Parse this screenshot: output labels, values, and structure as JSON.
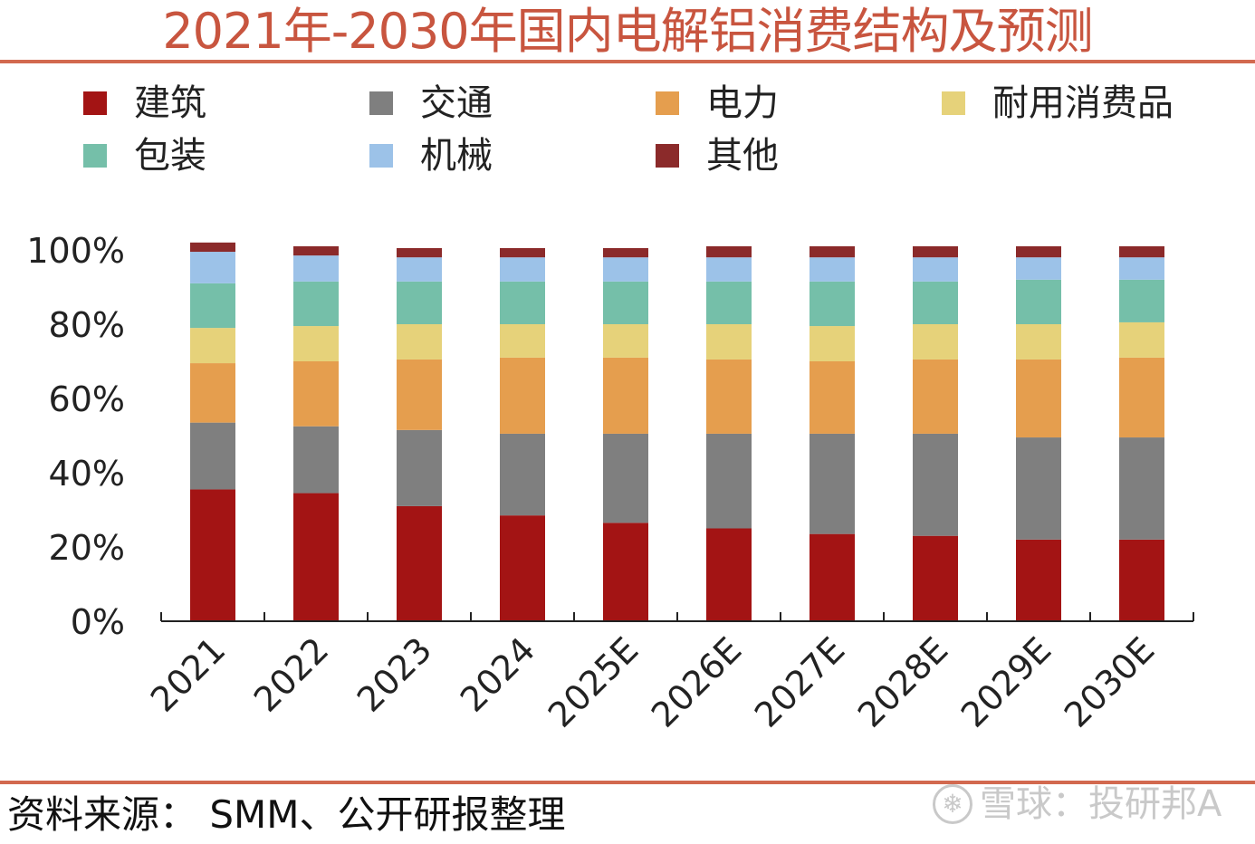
{
  "source_text": "资料来源： SMM、公开研报整理",
  "watermark": {
    "text": "雪球：投研邦A",
    "icon": "snowball-logo-icon"
  },
  "chart_data": {
    "type": "bar",
    "stacked": true,
    "title": "2021年-2030年国内电解铝消费结构及预测",
    "categories": [
      "2021",
      "2022",
      "2023",
      "2024",
      "2025E",
      "2026E",
      "2027E",
      "2028E",
      "2029E",
      "2030E"
    ],
    "series": [
      {
        "name": "建筑",
        "color": "#a31414",
        "values": [
          35.5,
          34.5,
          31,
          28.5,
          26.5,
          25,
          23.5,
          23,
          22,
          22
        ]
      },
      {
        "name": "交通",
        "color": "#7f7f7f",
        "values": [
          18,
          18,
          20.5,
          22,
          24,
          25.5,
          27,
          27.5,
          27.5,
          27.5
        ]
      },
      {
        "name": "电力",
        "color": "#e59e4e",
        "values": [
          16,
          17.5,
          19,
          20.5,
          20.5,
          20,
          19.5,
          20,
          21,
          21.5
        ]
      },
      {
        "name": "耐用消费品",
        "color": "#e6d27a",
        "values": [
          9.5,
          9.5,
          9.5,
          9,
          9,
          9.5,
          9.5,
          9.5,
          9.5,
          9.5
        ]
      },
      {
        "name": "包装",
        "color": "#75bfa9",
        "values": [
          12,
          12,
          11.5,
          11.5,
          11.5,
          11.5,
          12,
          11.5,
          12,
          11.5
        ]
      },
      {
        "name": "机械",
        "color": "#9cc2e8",
        "values": [
          8.5,
          7,
          6.5,
          6.5,
          6.5,
          6.5,
          6.5,
          6.5,
          6,
          6
        ]
      },
      {
        "name": "其他",
        "color": "#8b2a2a",
        "values": [
          2.5,
          2.5,
          2.5,
          2.5,
          2.5,
          3,
          3,
          3,
          3,
          3
        ]
      }
    ],
    "y_ticks": [
      "0%",
      "20%",
      "40%",
      "60%",
      "80%",
      "100%"
    ],
    "ylim": [
      0,
      100
    ],
    "xlabel": "",
    "ylabel": "",
    "legend_position": "top"
  }
}
